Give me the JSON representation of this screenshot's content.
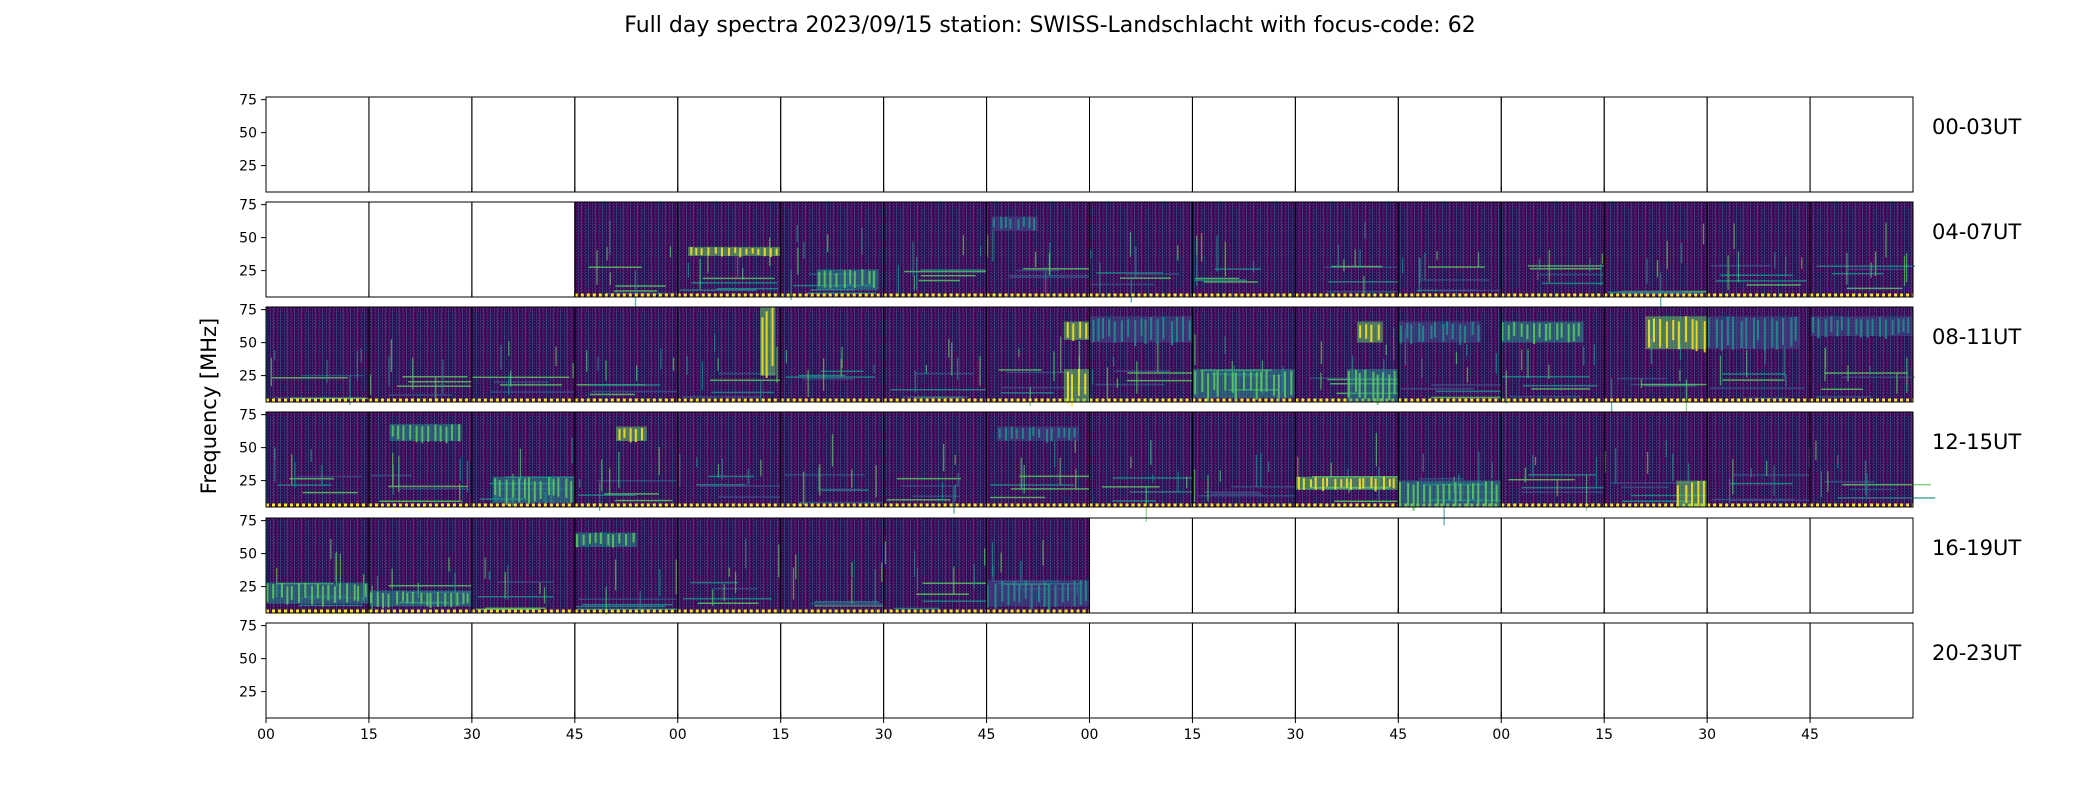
{
  "chart_data": {
    "type": "heatmap",
    "title": "Full day spectra 2023/09/15 station: SWISS-Landschlacht with focus-code: 62",
    "ylabel": "Frequency [MHz]",
    "xlabel": "",
    "ylim": [
      5,
      77
    ],
    "yticks": [
      25,
      50,
      75
    ],
    "xticks": [
      "00",
      "15",
      "30",
      "45",
      "00",
      "15",
      "30",
      "45",
      "00",
      "15",
      "30",
      "45",
      "00",
      "15",
      "30",
      "45"
    ],
    "panels_per_row": 16,
    "panel_minutes": 15,
    "grid": false,
    "colormap": [
      "#440154",
      "#3b528b",
      "#21918c",
      "#5ec962",
      "#fde725"
    ],
    "rows": [
      {
        "label": "00-03UT",
        "filled_panels": []
      },
      {
        "label": "04-07UT",
        "filled_panels": [
          3,
          4,
          5,
          6,
          7,
          8,
          9,
          10,
          11,
          12,
          13,
          14,
          15
        ]
      },
      {
        "label": "08-11UT",
        "filled_panels": [
          0,
          1,
          2,
          3,
          4,
          5,
          6,
          7,
          8,
          9,
          10,
          11,
          12,
          13,
          14,
          15
        ]
      },
      {
        "label": "12-15UT",
        "filled_panels": [
          0,
          1,
          2,
          3,
          4,
          5,
          6,
          7,
          8,
          9,
          10,
          11,
          12,
          13,
          14,
          15
        ]
      },
      {
        "label": "16-19UT",
        "filled_panels": [
          0,
          1,
          2,
          3,
          4,
          5,
          6,
          7
        ]
      },
      {
        "label": "20-23UT",
        "filled_panels": []
      }
    ],
    "features": [
      {
        "row": 1,
        "panel": 4,
        "kind": "band",
        "freq": [
          36,
          43
        ],
        "time": [
          0.1,
          1.0
        ],
        "level": 4
      },
      {
        "row": 1,
        "panel": 5,
        "kind": "band",
        "freq": [
          10,
          26
        ],
        "time": [
          0.35,
          0.95
        ],
        "level": 3
      },
      {
        "row": 1,
        "panel": 7,
        "kind": "band",
        "freq": [
          55,
          66
        ],
        "time": [
          0.05,
          0.5
        ],
        "level": 2
      },
      {
        "row": 2,
        "panel": 4,
        "kind": "band",
        "freq": [
          25,
          77
        ],
        "time": [
          0.8,
          0.95
        ],
        "level": 4
      },
      {
        "row": 2,
        "panel": 7,
        "kind": "band",
        "freq": [
          52,
          66
        ],
        "time": [
          0.75,
          1.0
        ],
        "level": 4
      },
      {
        "row": 2,
        "panel": 7,
        "kind": "band",
        "freq": [
          5,
          30
        ],
        "time": [
          0.75,
          1.0
        ],
        "level": 4
      },
      {
        "row": 2,
        "panel": 8,
        "kind": "band",
        "freq": [
          50,
          70
        ],
        "time": [
          0.0,
          1.0
        ],
        "level": 2
      },
      {
        "row": 2,
        "panel": 9,
        "kind": "band",
        "freq": [
          8,
          30
        ],
        "time": [
          0.0,
          1.0
        ],
        "level": 3
      },
      {
        "row": 2,
        "panel": 10,
        "kind": "band",
        "freq": [
          50,
          66
        ],
        "time": [
          0.6,
          0.85
        ],
        "level": 4
      },
      {
        "row": 2,
        "panel": 10,
        "kind": "band",
        "freq": [
          5,
          30
        ],
        "time": [
          0.5,
          1.0
        ],
        "level": 3
      },
      {
        "row": 2,
        "panel": 11,
        "kind": "band",
        "freq": [
          50,
          66
        ],
        "time": [
          0.0,
          0.8
        ],
        "level": 2
      },
      {
        "row": 2,
        "panel": 12,
        "kind": "band",
        "freq": [
          50,
          66
        ],
        "time": [
          0.0,
          0.8
        ],
        "level": 3
      },
      {
        "row": 2,
        "panel": 13,
        "kind": "band",
        "freq": [
          45,
          70
        ],
        "time": [
          0.4,
          1.0
        ],
        "level": 4
      },
      {
        "row": 2,
        "panel": 14,
        "kind": "band",
        "freq": [
          45,
          70
        ],
        "time": [
          0.0,
          0.9
        ],
        "level": 2
      },
      {
        "row": 2,
        "panel": 15,
        "kind": "band",
        "freq": [
          55,
          70
        ],
        "time": [
          0.0,
          1.0
        ],
        "level": 2
      },
      {
        "row": 3,
        "panel": 1,
        "kind": "band",
        "freq": [
          55,
          68
        ],
        "time": [
          0.2,
          0.9
        ],
        "level": 3
      },
      {
        "row": 3,
        "panel": 2,
        "kind": "band",
        "freq": [
          8,
          28
        ],
        "time": [
          0.2,
          1.0
        ],
        "level": 3
      },
      {
        "row": 3,
        "panel": 3,
        "kind": "band",
        "freq": [
          55,
          66
        ],
        "time": [
          0.4,
          0.7
        ],
        "level": 4
      },
      {
        "row": 3,
        "panel": 7,
        "kind": "band",
        "freq": [
          55,
          66
        ],
        "time": [
          0.1,
          0.9
        ],
        "level": 2
      },
      {
        "row": 3,
        "panel": 10,
        "kind": "band",
        "freq": [
          18,
          28
        ],
        "time": [
          0.0,
          1.0
        ],
        "level": 4
      },
      {
        "row": 3,
        "panel": 11,
        "kind": "band",
        "freq": [
          5,
          25
        ],
        "time": [
          0.0,
          1.0
        ],
        "level": 3
      },
      {
        "row": 3,
        "panel": 13,
        "kind": "band",
        "freq": [
          5,
          25
        ],
        "time": [
          0.7,
          1.0
        ],
        "level": 4
      },
      {
        "row": 4,
        "panel": 0,
        "kind": "band",
        "freq": [
          12,
          28
        ],
        "time": [
          0.0,
          1.0
        ],
        "level": 3
      },
      {
        "row": 4,
        "panel": 1,
        "kind": "band",
        "freq": [
          10,
          22
        ],
        "time": [
          0.0,
          1.0
        ],
        "level": 3
      },
      {
        "row": 4,
        "panel": 3,
        "kind": "band",
        "freq": [
          55,
          66
        ],
        "time": [
          0.0,
          0.6
        ],
        "level": 3
      },
      {
        "row": 4,
        "panel": 7,
        "kind": "band",
        "freq": [
          10,
          30
        ],
        "time": [
          0.0,
          1.0
        ],
        "level": 2
      }
    ]
  }
}
